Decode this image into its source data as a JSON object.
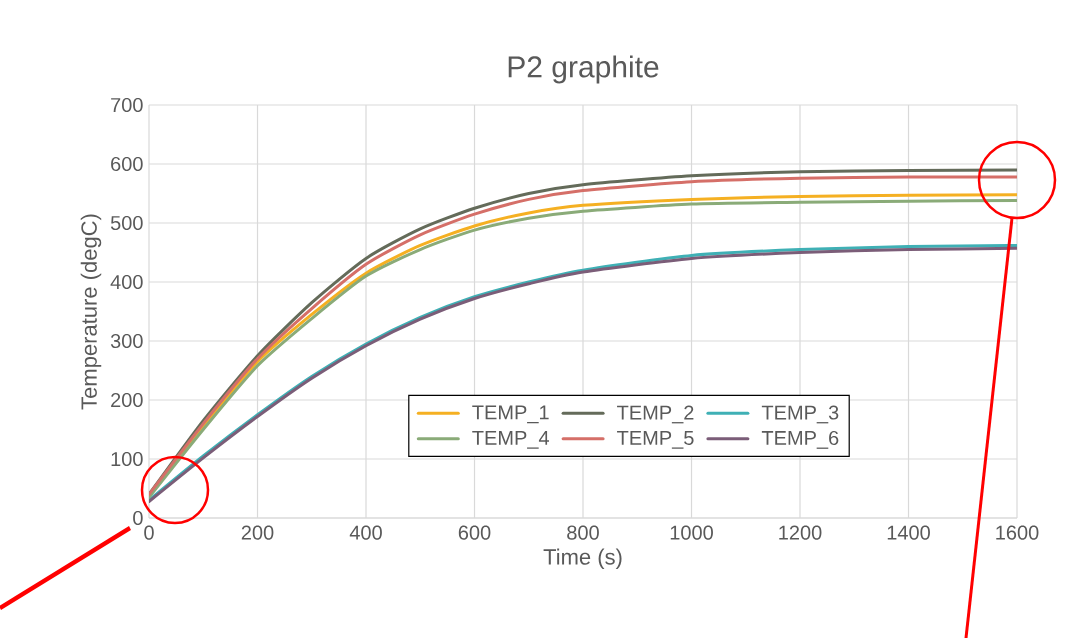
{
  "chart_data": {
    "type": "line",
    "title": "P2 graphite",
    "xlabel": "Time (s)",
    "ylabel": "Temperature (degC)",
    "x": [
      0,
      100,
      200,
      300,
      400,
      500,
      600,
      700,
      800,
      1000,
      1200,
      1400,
      1600
    ],
    "series": [
      {
        "name": "TEMP_1",
        "color": "#f5b022",
        "values": [
          38,
          155,
          265,
          345,
          415,
          462,
          495,
          517,
          530,
          540,
          545,
          547,
          548
        ]
      },
      {
        "name": "TEMP_2",
        "color": "#646b5a",
        "values": [
          40,
          165,
          275,
          365,
          440,
          490,
          525,
          550,
          565,
          580,
          587,
          589,
          590
        ]
      },
      {
        "name": "TEMP_3",
        "color": "#3fb0b5",
        "values": [
          30,
          105,
          175,
          240,
          295,
          340,
          375,
          400,
          420,
          445,
          455,
          460,
          462
        ]
      },
      {
        "name": "TEMP_4",
        "color": "#8aab78",
        "values": [
          35,
          150,
          258,
          338,
          410,
          455,
          488,
          508,
          520,
          532,
          535,
          537,
          538
        ]
      },
      {
        "name": "TEMP_5",
        "color": "#d56f68",
        "values": [
          40,
          160,
          270,
          355,
          430,
          480,
          515,
          540,
          555,
          570,
          576,
          578,
          578
        ]
      },
      {
        "name": "TEMP_6",
        "color": "#7b5d78",
        "values": [
          28,
          102,
          172,
          237,
          292,
          337,
          372,
          397,
          417,
          440,
          450,
          455,
          457
        ]
      }
    ],
    "xlim": [
      0,
      1600
    ],
    "ylim": [
      0,
      700
    ],
    "xticks": [
      0,
      200,
      400,
      600,
      800,
      1000,
      1200,
      1400,
      1600
    ],
    "yticks": [
      0,
      100,
      200,
      300,
      400,
      500,
      600,
      700
    ],
    "grid": true,
    "legend": "bottom",
    "marker": "none",
    "line_style": "solid"
  }
}
